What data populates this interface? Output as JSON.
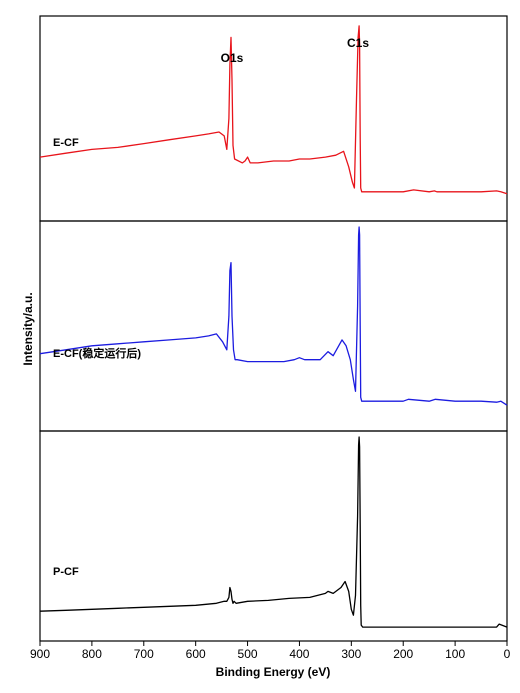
{
  "chart_data": {
    "type": "line",
    "xlabel": "Binding Energy (eV)",
    "ylabel": "Intensity/a.u.",
    "xlim": [
      900,
      0
    ],
    "x_reversed": true,
    "xticks": [
      900,
      800,
      700,
      600,
      500,
      400,
      300,
      200,
      100,
      0
    ],
    "grid": false,
    "peak_labels": [
      {
        "text": "O1s",
        "x": 532
      },
      {
        "text": "C1s",
        "x": 284
      }
    ],
    "series": [
      {
        "name": "E-CF",
        "color": "#e8141b",
        "panel": 0,
        "ylim": [
          0,
          100
        ],
        "x": [
          900,
          850,
          800,
          750,
          700,
          650,
          600,
          575,
          555,
          545,
          540,
          536,
          534,
          532,
          530,
          528,
          525,
          510,
          505,
          500,
          495,
          480,
          450,
          420,
          400,
          380,
          350,
          330,
          315,
          305,
          298,
          294,
          290,
          287,
          285,
          284,
          283,
          282,
          280,
          278,
          260,
          240,
          200,
          180,
          150,
          140,
          135,
          100,
          50,
          20,
          12,
          0
        ],
        "y": [
          30,
          32,
          34,
          35,
          37,
          39,
          41,
          42,
          43,
          41,
          34,
          50,
          78,
          92,
          70,
          36,
          29,
          27,
          28,
          30,
          27,
          27,
          28,
          28,
          29,
          29,
          30,
          31,
          33,
          25,
          17,
          14,
          60,
          92,
          98,
          88,
          40,
          14,
          12,
          12,
          12,
          12,
          12,
          13,
          12,
          12.5,
          12,
          12,
          12,
          12.5,
          12,
          11
        ]
      },
      {
        "name": "E-CF(稳定运行后)",
        "color": "#1c1ce0",
        "panel": 1,
        "ylim": [
          0,
          100
        ],
        "x": [
          900,
          850,
          800,
          750,
          700,
          650,
          600,
          575,
          560,
          548,
          540,
          536,
          534,
          532,
          530,
          527,
          524,
          520,
          500,
          480,
          460,
          430,
          410,
          400,
          390,
          360,
          345,
          335,
          318,
          310,
          302,
          296,
          292,
          288,
          286,
          285,
          284,
          283,
          282,
          280,
          270,
          250,
          230,
          200,
          190,
          150,
          138,
          100,
          50,
          20,
          12,
          0
        ],
        "y": [
          36,
          38,
          40,
          41,
          42,
          43,
          44,
          45,
          46,
          42,
          38,
          55,
          78,
          82,
          55,
          38,
          33,
          33,
          32,
          32,
          32,
          32,
          33,
          34,
          33,
          33,
          37,
          35,
          43,
          40,
          33,
          23,
          17,
          60,
          96,
          100,
          96,
          50,
          14,
          12,
          12,
          12,
          12,
          12,
          13,
          12,
          13,
          12,
          12,
          11.5,
          12,
          10
        ]
      },
      {
        "name": "P-CF",
        "color": "#000000",
        "panel": 2,
        "ylim": [
          0,
          100
        ],
        "x": [
          900,
          850,
          800,
          750,
          700,
          650,
          600,
          560,
          545,
          540,
          536,
          534,
          532,
          530,
          528,
          526,
          522,
          500,
          460,
          420,
          380,
          350,
          345,
          340,
          335,
          320,
          312,
          305,
          300,
          296,
          292,
          288,
          286,
          285,
          284,
          283,
          282,
          281,
          278,
          270,
          250,
          200,
          150,
          100,
          50,
          20,
          15,
          10,
          0
        ],
        "y": [
          12,
          12.5,
          13,
          13.5,
          14,
          14.5,
          15,
          16,
          17,
          17,
          19,
          24,
          22,
          18,
          16,
          17,
          16,
          17,
          17.5,
          18.5,
          19,
          21,
          22,
          21.5,
          21,
          24,
          27,
          22,
          13,
          10,
          20,
          60,
          96,
          100,
          95,
          55,
          15,
          5,
          4,
          4,
          4,
          4,
          4,
          4,
          4,
          4,
          5.5,
          5,
          4
        ]
      }
    ]
  }
}
